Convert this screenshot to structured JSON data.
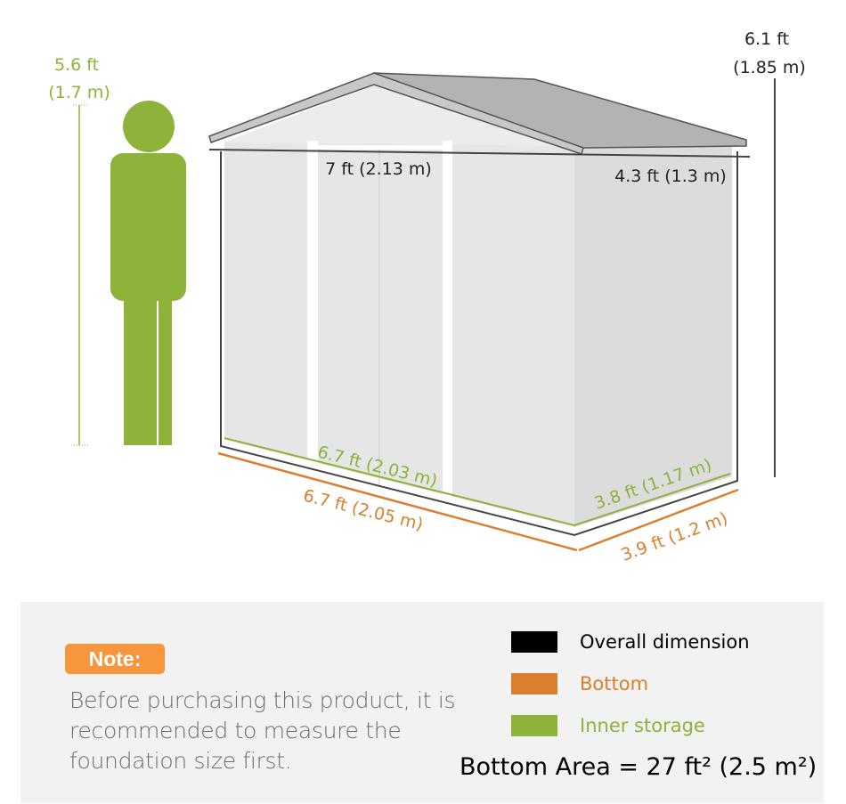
{
  "colors": {
    "overall": "#000000",
    "bottom": "#d97f2e",
    "inner": "#8db33a",
    "note": "#f7963c",
    "panel": "#f2f2f2"
  },
  "person": {
    "height_ft": "5.6 ft",
    "height_m": "(1.7 m)"
  },
  "shed": {
    "height_ft": "6.1 ft",
    "height_m": "(1.85 m)",
    "overall_width": "7 ft (2.13 m)",
    "overall_depth": "4.3 ft (1.3 m)",
    "inner_width": "6.7 ft (2.03 m)",
    "inner_depth": "3.8 ft (1.17 m)",
    "bottom_width": "6.7 ft (2.05 m)",
    "bottom_depth": "3.9 ft (1.2 m)"
  },
  "note": {
    "badge": "Note:",
    "text": "Before purchasing this product, it is recommended to measure the foundation size first."
  },
  "legend": [
    {
      "label": "Overall dimension",
      "color": "#000000"
    },
    {
      "label": "Bottom",
      "color": "#d97f2e"
    },
    {
      "label": "Inner storage",
      "color": "#8db33a"
    }
  ],
  "bottom_area": "Bottom Area = 27 ft² (2.5 m²)"
}
